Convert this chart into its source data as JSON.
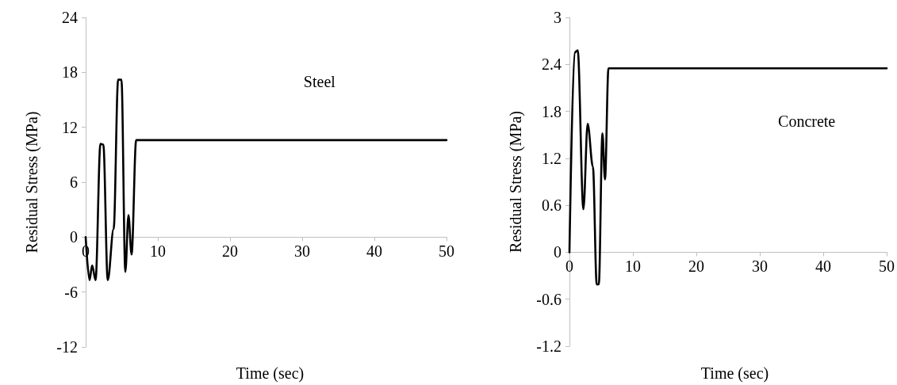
{
  "chart_data": [
    {
      "type": "line",
      "xlabel": "Time (sec)",
      "ylabel": "Residual Stress (MPa)",
      "annotations": [
        "Steel"
      ],
      "xlim": [
        0,
        50
      ],
      "xticks": [
        0,
        10,
        20,
        30,
        40,
        50
      ],
      "ylim": [
        -12,
        24
      ],
      "yticks": [
        -12,
        -6,
        0,
        6,
        12,
        18,
        24
      ],
      "marker": "none",
      "line_style": "solid",
      "series": [
        {
          "color": "#000000",
          "x": [
            0,
            0.54,
            0.9,
            1.37,
            2.05,
            2.45,
            3.06,
            3.88,
            4.5,
            4.96,
            5.5,
            5.93,
            6.36,
            7.0,
            50
          ],
          "values": [
            0,
            -4.7,
            -3.1,
            -4.7,
            10.2,
            10.1,
            -4.7,
            0.9,
            17.2,
            17.2,
            -3.8,
            2.4,
            -1.9,
            10.6,
            10.6
          ]
        }
      ]
    },
    {
      "type": "line",
      "xlabel": "Time (sec)",
      "ylabel": "Residual Stress (MPa)",
      "annotations": [
        "Concrete"
      ],
      "xlim": [
        0,
        50
      ],
      "xticks": [
        0,
        10,
        20,
        30,
        40,
        50
      ],
      "ylim": [
        -1.2,
        3
      ],
      "yticks": [
        -1.2,
        -0.6,
        0,
        0.6,
        1.2,
        1.8,
        2.4,
        3
      ],
      "marker": "none",
      "line_style": "solid",
      "series": [
        {
          "color": "#000000",
          "x": [
            0,
            0.8,
            1.3,
            2.2,
            2.87,
            3.7,
            4.3,
            4.63,
            5.2,
            5.6,
            6.15,
            50
          ],
          "values": [
            0,
            2.55,
            2.58,
            0.55,
            1.64,
            1.09,
            -0.41,
            -0.41,
            1.52,
            0.93,
            2.35,
            2.35
          ]
        }
      ]
    }
  ]
}
